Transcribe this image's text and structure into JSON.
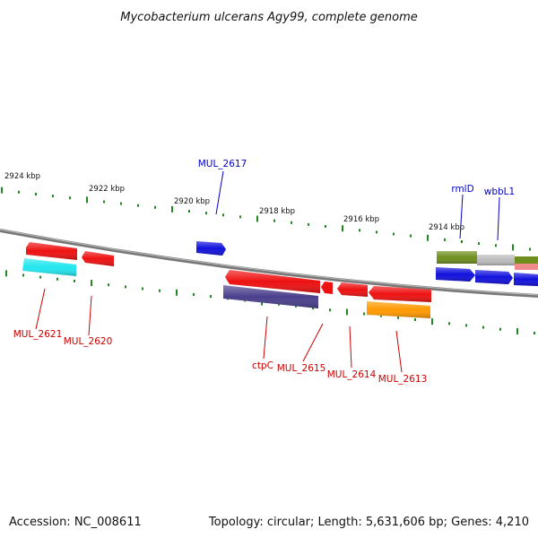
{
  "title": "Mycobacterium ulcerans Agy99, complete genome",
  "footer": {
    "accession": "Accession: NC_008611",
    "summary": "Topology: circular; Length: 5,631,606 bp; Genes: 4,210"
  },
  "tick_labels": [
    "2924 kbp",
    "2922 kbp",
    "2920 kbp",
    "2918 kbp",
    "2916 kbp",
    "2914 kbp"
  ],
  "gene_labels": [
    {
      "id": "mul2617",
      "text": "MUL_2617",
      "color": "#0000cc"
    },
    {
      "id": "rmld",
      "text": "rmlD",
      "color": "#0000cc"
    },
    {
      "id": "wbbl1",
      "text": "wbbL1",
      "color": "#0000cc"
    },
    {
      "id": "mul2621",
      "text": "MUL_2621",
      "color": "#cc0000"
    },
    {
      "id": "mul2620",
      "text": "MUL_2620",
      "color": "#cc0000"
    },
    {
      "id": "ctpc",
      "text": "ctpC",
      "color": "#cc0000"
    },
    {
      "id": "mul2615",
      "text": "MUL_2615",
      "color": "#cc0000"
    },
    {
      "id": "mul2614",
      "text": "MUL_2614",
      "color": "#cc0000"
    },
    {
      "id": "mul2613",
      "text": "MUL_2613",
      "color": "#cc0000"
    }
  ],
  "colors": {
    "red": "#ee1111",
    "blue": "#1111dd",
    "cyan": "#22e6ee",
    "navy": "#4a3f8c",
    "orange": "#ff9900",
    "olive": "#6e8f1e",
    "gray": "#bbbbbb",
    "pink": "#f08a8a",
    "tick": "#228822",
    "backbone": "#888888"
  }
}
